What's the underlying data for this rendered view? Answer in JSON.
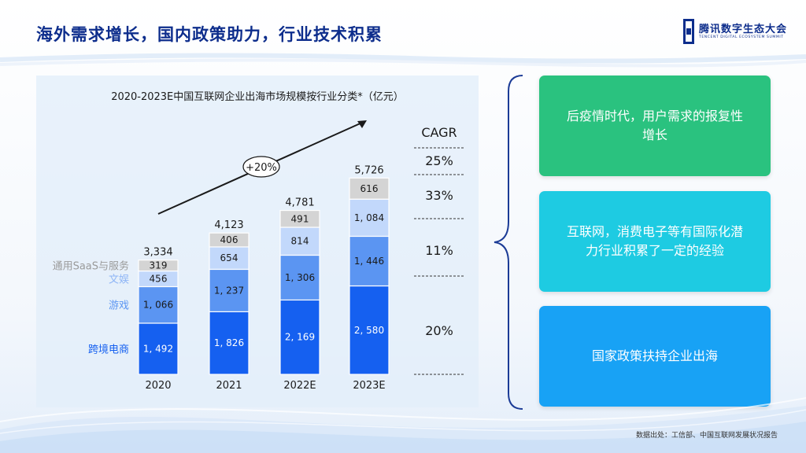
{
  "slide": {
    "title": "海外需求增长，国内政策助力，行业技术积累",
    "source": "数据出处：工信部、中国互联网发展状况报告"
  },
  "logo": {
    "name_cn": "腾讯数字生态大会",
    "name_en": "TENCENT DIGITAL ECOSYSTEM SUMMIT"
  },
  "colors": {
    "title": "#0d2d8c",
    "ecommerce": "#1560f0",
    "games": "#5b95f2",
    "entertainment": "#c2d8fb",
    "saas": "#d4d4d4",
    "card_green": "#2ac27f",
    "card_cyan": "#1ecbe2",
    "card_blue": "#18a2f5"
  },
  "cards": [
    {
      "text": "后疫情时代，用户需求的报复性增长"
    },
    {
      "text": "互联网，消费电子等有国际化潜力行业积累了一定的经验"
    },
    {
      "text": "国家政策扶持企业出海"
    }
  ],
  "chart_data": {
    "type": "bar",
    "stacked": true,
    "title": "2020-2023E中国互联网企业出海市场规模按行业分类*（亿元）",
    "categories": [
      "2020",
      "2021",
      "2022E",
      "2023E"
    ],
    "series": [
      {
        "name": "跨境电商",
        "values": [
          1492,
          1826,
          2169,
          2580
        ],
        "labels": [
          "1, 492",
          "1, 826",
          "2, 169",
          "2, 580"
        ],
        "cagr": "20%"
      },
      {
        "name": "游戏",
        "values": [
          1066,
          1237,
          1306,
          1446
        ],
        "labels": [
          "1, 066",
          "1, 237",
          "1, 306",
          "1, 446"
        ],
        "cagr": "11%"
      },
      {
        "name": "文娱",
        "values": [
          456,
          654,
          814,
          1084
        ],
        "labels": [
          "456",
          "654",
          "814",
          "1, 084"
        ],
        "cagr": "33%"
      },
      {
        "name": "通用SaaS与服务",
        "values": [
          319,
          406,
          491,
          616
        ],
        "labels": [
          "319",
          "406",
          "491",
          "616"
        ],
        "cagr": "25%"
      }
    ],
    "totals": [
      "3,334",
      "4,123",
      "4,781",
      "5,726"
    ],
    "growth_label": "+20%",
    "cagr_header": "CAGR",
    "ylim": [
      0,
      6000
    ]
  }
}
